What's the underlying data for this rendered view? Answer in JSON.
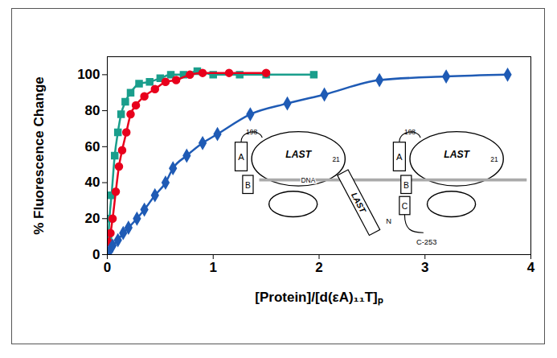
{
  "chart_data": {
    "type": "line",
    "x_label": "[Protein]/[d(εA)₁₁T]ₚ",
    "y_label": "% Fluorescence Change",
    "xlim": [
      0,
      4
    ],
    "xticks": [
      0,
      1,
      2,
      3,
      4
    ],
    "ylim": [
      0,
      110
    ],
    "yticks": [
      0,
      20,
      40,
      60,
      80,
      100
    ],
    "grid": false,
    "series": [
      {
        "color": "#1a9e8c",
        "marker": "square",
        "x": [
          0.01,
          0.02,
          0.04,
          0.07,
          0.1,
          0.13,
          0.17,
          0.22,
          0.3,
          0.4,
          0.5,
          0.6,
          0.72,
          0.85,
          1.0,
          1.25,
          1.5,
          1.95
        ],
        "values": [
          10,
          20,
          33,
          55,
          68,
          78,
          85,
          90,
          95,
          96,
          98,
          100,
          100,
          102,
          100,
          100,
          100,
          100
        ]
      },
      {
        "color": "#e8001c",
        "marker": "circle",
        "x": [
          0.01,
          0.03,
          0.05,
          0.08,
          0.11,
          0.14,
          0.18,
          0.22,
          0.27,
          0.35,
          0.45,
          0.55,
          0.65,
          0.78,
          0.9,
          1.15,
          1.5
        ],
        "values": [
          7,
          12,
          20,
          35,
          49,
          58,
          68,
          78,
          83,
          88,
          92,
          96,
          97,
          100,
          101,
          101,
          101
        ]
      },
      {
        "color": "#1f5bb5",
        "marker": "diamond",
        "x": [
          0.02,
          0.05,
          0.1,
          0.15,
          0.2,
          0.28,
          0.35,
          0.45,
          0.55,
          0.62,
          0.75,
          0.9,
          1.04,
          1.35,
          1.7,
          2.05,
          2.57,
          3.2,
          3.78
        ],
        "values": [
          2,
          5,
          8,
          12,
          15,
          20,
          25,
          33,
          40,
          48,
          55,
          62,
          67,
          78,
          84,
          89,
          97,
          99,
          100
        ]
      }
    ],
    "inset": {
      "units": [
        {
          "domain_a": "A",
          "domain_b": "B",
          "core": "LAST",
          "start": "198",
          "end": "21"
        },
        {
          "domain_a": "A",
          "domain_b": "B",
          "core": "LAST",
          "start": "198",
          "end": "21"
        }
      ],
      "dna": "DNA",
      "linker": "LAST",
      "domain_c": "C",
      "n_term": "N",
      "c_term": "C-253"
    }
  }
}
